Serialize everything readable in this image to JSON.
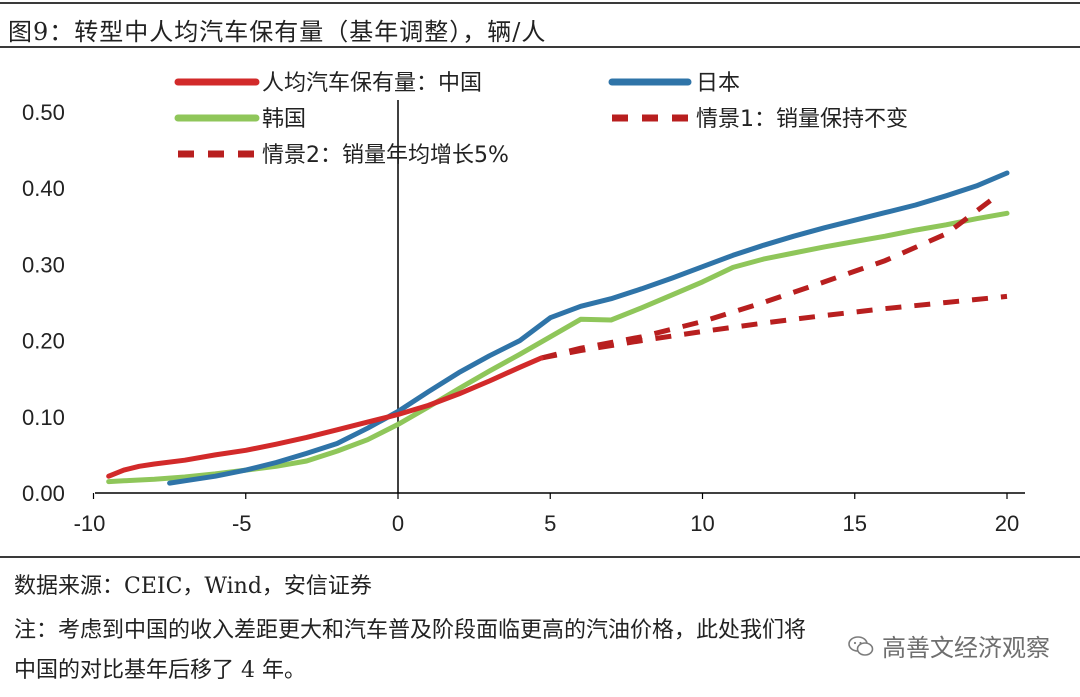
{
  "figure": {
    "title": "图9：转型中人均汽车保有量（基年调整），辆/人",
    "source": "数据来源：CEIC，Wind，安信证券",
    "note_line1": "注：考虑到中国的收入差距更大和汽车普及阶段面临更高的汽油价格，此处我们将",
    "note_line2": "中国的对比基年后移了 4 年。",
    "watermark": "高善文经济观察"
  },
  "colors": {
    "china": "#d22a2a",
    "japan": "#2f74a8",
    "korea": "#8fc65a",
    "scenario": "#b81f1f",
    "axis": "#000000",
    "rule": "#3a3a3a"
  },
  "chart_data": {
    "type": "line",
    "x_ticks": [
      "-10",
      "-5",
      "0",
      "5",
      "10",
      "15",
      "20"
    ],
    "y_ticks": [
      "0.00",
      "0.10",
      "0.20",
      "0.30",
      "0.40",
      "0.50"
    ],
    "xlim": [
      -10,
      21
    ],
    "ylim": [
      0,
      0.5
    ],
    "legend_position": "top",
    "series": [
      {
        "name": "人均汽车保有量：中国",
        "style": "solid",
        "color_key": "china",
        "points": [
          [
            -9.5,
            0.022
          ],
          [
            -9,
            0.03
          ],
          [
            -8.5,
            0.035
          ],
          [
            -8,
            0.038
          ],
          [
            -7,
            0.043
          ],
          [
            -6,
            0.05
          ],
          [
            -5,
            0.056
          ],
          [
            -4,
            0.064
          ],
          [
            -3,
            0.073
          ],
          [
            -2,
            0.083
          ],
          [
            -1,
            0.093
          ],
          [
            0,
            0.103
          ],
          [
            1,
            0.115
          ],
          [
            2,
            0.13
          ],
          [
            3,
            0.147
          ],
          [
            4,
            0.165
          ],
          [
            4.7,
            0.177
          ]
        ]
      },
      {
        "name": "日本",
        "style": "solid",
        "color_key": "japan",
        "points": [
          [
            -7.5,
            0.013
          ],
          [
            -7,
            0.016
          ],
          [
            -6,
            0.022
          ],
          [
            -5,
            0.03
          ],
          [
            -4,
            0.04
          ],
          [
            -3,
            0.052
          ],
          [
            -2,
            0.065
          ],
          [
            -1,
            0.085
          ],
          [
            0,
            0.107
          ],
          [
            1,
            0.133
          ],
          [
            2,
            0.158
          ],
          [
            3,
            0.18
          ],
          [
            4,
            0.2
          ],
          [
            5,
            0.23
          ],
          [
            6,
            0.245
          ],
          [
            7,
            0.255
          ],
          [
            8,
            0.268
          ],
          [
            9,
            0.282
          ],
          [
            10,
            0.297
          ],
          [
            11,
            0.312
          ],
          [
            12,
            0.325
          ],
          [
            13,
            0.337
          ],
          [
            14,
            0.348
          ],
          [
            15,
            0.358
          ],
          [
            16,
            0.368
          ],
          [
            17,
            0.378
          ],
          [
            18,
            0.39
          ],
          [
            19,
            0.403
          ],
          [
            20,
            0.42
          ]
        ]
      },
      {
        "name": "韩国",
        "style": "solid",
        "color_key": "korea",
        "points": [
          [
            -9.5,
            0.015
          ],
          [
            -9,
            0.016
          ],
          [
            -8,
            0.018
          ],
          [
            -7,
            0.021
          ],
          [
            -6,
            0.025
          ],
          [
            -5,
            0.03
          ],
          [
            -4,
            0.035
          ],
          [
            -3,
            0.042
          ],
          [
            -2,
            0.055
          ],
          [
            -1,
            0.07
          ],
          [
            0,
            0.09
          ],
          [
            1,
            0.113
          ],
          [
            2,
            0.137
          ],
          [
            3,
            0.16
          ],
          [
            4,
            0.182
          ],
          [
            5,
            0.205
          ],
          [
            6,
            0.228
          ],
          [
            7,
            0.227
          ],
          [
            8,
            0.243
          ],
          [
            9,
            0.26
          ],
          [
            10,
            0.277
          ],
          [
            11,
            0.296
          ],
          [
            12,
            0.307
          ],
          [
            13,
            0.315
          ],
          [
            14,
            0.323
          ],
          [
            15,
            0.33
          ],
          [
            16,
            0.337
          ],
          [
            17,
            0.345
          ],
          [
            18,
            0.352
          ],
          [
            19,
            0.36
          ],
          [
            20,
            0.367
          ]
        ]
      },
      {
        "name": "情景1：销量保持不变",
        "style": "dashed",
        "color_key": "scenario",
        "points": [
          [
            4.7,
            0.177
          ],
          [
            6,
            0.187
          ],
          [
            8,
            0.2
          ],
          [
            10,
            0.212
          ],
          [
            12,
            0.223
          ],
          [
            14,
            0.233
          ],
          [
            16,
            0.242
          ],
          [
            18,
            0.25
          ],
          [
            20,
            0.258
          ]
        ]
      },
      {
        "name": "情景2：销量年均增长5%",
        "style": "dashed",
        "color_key": "scenario",
        "points": [
          [
            4.7,
            0.177
          ],
          [
            6,
            0.19
          ],
          [
            8,
            0.205
          ],
          [
            10,
            0.225
          ],
          [
            12,
            0.25
          ],
          [
            14,
            0.277
          ],
          [
            16,
            0.305
          ],
          [
            18,
            0.34
          ],
          [
            19.5,
            0.385
          ]
        ]
      }
    ]
  }
}
